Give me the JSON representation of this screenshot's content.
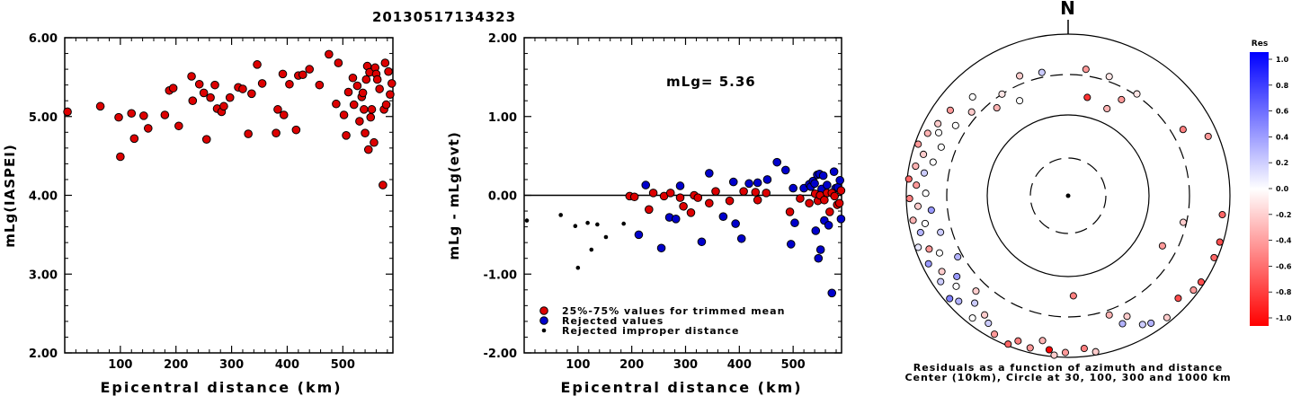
{
  "title": "20130517134323",
  "colors": {
    "accepted": "#dd0000",
    "rejected": "#0000cc",
    "improper": "#000000"
  },
  "chart_data": [
    {
      "type": "scatter",
      "xlabel": "Epicentral distance (km)",
      "ylabel": "mLg(IASPEI)",
      "xlim": [
        0,
        590
      ],
      "ylim": [
        2.0,
        6.0
      ],
      "xticks": [
        "100",
        "200",
        "300",
        "400",
        "500"
      ],
      "yticks": [
        "2.00",
        "3.00",
        "4.00",
        "5.00",
        "6.00"
      ],
      "points": [
        [
          5,
          5.06
        ],
        [
          64,
          5.13
        ],
        [
          97,
          4.99
        ],
        [
          100,
          4.49
        ],
        [
          120,
          5.04
        ],
        [
          125,
          4.72
        ],
        [
          142,
          5.01
        ],
        [
          150,
          4.85
        ],
        [
          180,
          5.02
        ],
        [
          188,
          5.33
        ],
        [
          195,
          5.36
        ],
        [
          205,
          4.88
        ],
        [
          228,
          5.51
        ],
        [
          230,
          5.2
        ],
        [
          242,
          5.41
        ],
        [
          250,
          5.3
        ],
        [
          255,
          4.71
        ],
        [
          262,
          5.24
        ],
        [
          270,
          5.4
        ],
        [
          274,
          5.1
        ],
        [
          282,
          5.06
        ],
        [
          286,
          5.13
        ],
        [
          297,
          5.24
        ],
        [
          312,
          5.37
        ],
        [
          320,
          5.35
        ],
        [
          330,
          4.78
        ],
        [
          336,
          5.29
        ],
        [
          346,
          5.66
        ],
        [
          355,
          5.42
        ],
        [
          380,
          4.79
        ],
        [
          383,
          5.09
        ],
        [
          392,
          5.54
        ],
        [
          394,
          5.02
        ],
        [
          404,
          5.41
        ],
        [
          416,
          4.83
        ],
        [
          420,
          5.52
        ],
        [
          428,
          5.53
        ],
        [
          440,
          5.6
        ],
        [
          458,
          5.4
        ],
        [
          475,
          5.79
        ],
        [
          488,
          5.16
        ],
        [
          492,
          5.68
        ],
        [
          502,
          5.02
        ],
        [
          506,
          4.76
        ],
        [
          510,
          5.31
        ],
        [
          518,
          5.49
        ],
        [
          520,
          5.15
        ],
        [
          526,
          5.39
        ],
        [
          530,
          4.94
        ],
        [
          534,
          5.25
        ],
        [
          536,
          5.3
        ],
        [
          538,
          5.09
        ],
        [
          540,
          4.79
        ],
        [
          542,
          5.47
        ],
        [
          544,
          5.64
        ],
        [
          546,
          4.58
        ],
        [
          548,
          5.56
        ],
        [
          550,
          4.99
        ],
        [
          552,
          5.09
        ],
        [
          556,
          4.67
        ],
        [
          558,
          5.62
        ],
        [
          560,
          5.54
        ],
        [
          562,
          5.47
        ],
        [
          566,
          5.35
        ],
        [
          572,
          4.13
        ],
        [
          574,
          5.09
        ],
        [
          576,
          5.68
        ],
        [
          578,
          5.15
        ],
        [
          582,
          5.57
        ],
        [
          585,
          5.28
        ],
        [
          588,
          5.42
        ]
      ]
    },
    {
      "type": "scatter",
      "xlabel": "Epicentral distance (km)",
      "ylabel": "mLg - mLg(evt)",
      "xlim": [
        0,
        590
      ],
      "ylim": [
        -2.0,
        2.0
      ],
      "xticks": [
        "100",
        "200",
        "300",
        "400",
        "500"
      ],
      "yticks": [
        "-2.00",
        "-1.00",
        "0.00",
        "1.00",
        "2.00"
      ],
      "annotation": "mLg= 5.36",
      "hline": 0.0,
      "legend": [
        {
          "label": "25%-75% values for trimmed mean",
          "kind": "accepted"
        },
        {
          "label": "Rejected values",
          "kind": "rejected"
        },
        {
          "label": "Rejected improper distance",
          "kind": "improper"
        }
      ],
      "accepted": [
        [
          196,
          -0.01
        ],
        [
          205,
          -0.02
        ],
        [
          232,
          -0.18
        ],
        [
          240,
          0.03
        ],
        [
          260,
          -0.01
        ],
        [
          272,
          0.03
        ],
        [
          290,
          -0.03
        ],
        [
          296,
          -0.14
        ],
        [
          310,
          -0.22
        ],
        [
          316,
          0.0
        ],
        [
          323,
          -0.03
        ],
        [
          344,
          -0.1
        ],
        [
          356,
          0.05
        ],
        [
          382,
          -0.07
        ],
        [
          408,
          0.05
        ],
        [
          430,
          0.04
        ],
        [
          434,
          -0.06
        ],
        [
          450,
          0.03
        ],
        [
          494,
          -0.21
        ],
        [
          513,
          -0.04
        ],
        [
          530,
          -0.1
        ],
        [
          541,
          0.02
        ],
        [
          546,
          -0.07
        ],
        [
          550,
          0.0
        ],
        [
          558,
          -0.06
        ],
        [
          563,
          0.03
        ],
        [
          568,
          -0.21
        ],
        [
          572,
          0.03
        ],
        [
          577,
          -0.01
        ],
        [
          582,
          -0.12
        ],
        [
          586,
          -0.1
        ],
        [
          589,
          0.06
        ]
      ],
      "rejected": [
        [
          213,
          -0.5
        ],
        [
          226,
          0.13
        ],
        [
          255,
          -0.67
        ],
        [
          270,
          -0.28
        ],
        [
          282,
          -0.3
        ],
        [
          290,
          0.12
        ],
        [
          330,
          -0.59
        ],
        [
          344,
          0.28
        ],
        [
          370,
          -0.27
        ],
        [
          389,
          0.17
        ],
        [
          393,
          -0.36
        ],
        [
          404,
          -0.55
        ],
        [
          418,
          0.15
        ],
        [
          434,
          0.16
        ],
        [
          452,
          0.2
        ],
        [
          470,
          0.42
        ],
        [
          486,
          0.32
        ],
        [
          496,
          -0.62
        ],
        [
          500,
          0.09
        ],
        [
          503,
          -0.35
        ],
        [
          520,
          0.09
        ],
        [
          530,
          0.14
        ],
        [
          533,
          0.11
        ],
        [
          537,
          0.18
        ],
        [
          540,
          0.15
        ],
        [
          542,
          -0.45
        ],
        [
          545,
          0.26
        ],
        [
          547,
          -0.8
        ],
        [
          549,
          0.27
        ],
        [
          551,
          -0.69
        ],
        [
          553,
          0.08
        ],
        [
          556,
          0.25
        ],
        [
          558,
          -0.32
        ],
        [
          563,
          0.13
        ],
        [
          566,
          -0.38
        ],
        [
          572,
          -1.24
        ],
        [
          576,
          0.3
        ],
        [
          579,
          0.09
        ],
        [
          583,
          0.1
        ],
        [
          587,
          0.19
        ],
        [
          589,
          -0.3
        ]
      ],
      "improper": [
        [
          5,
          -0.32
        ],
        [
          68,
          -0.25
        ],
        [
          95,
          -0.39
        ],
        [
          100,
          -0.92
        ],
        [
          118,
          -0.35
        ],
        [
          125,
          -0.69
        ],
        [
          136,
          -0.37
        ],
        [
          152,
          -0.53
        ],
        [
          185,
          -0.36
        ]
      ]
    },
    {
      "type": "polar-scatter",
      "north_label": "N",
      "caption_lines": [
        "Residuals as a function of azimuth and distance",
        "Center (10km), Circle at 30, 100, 300 and 1000 km"
      ],
      "rings_km": [
        30,
        100,
        300,
        1000
      ],
      "colorbar": {
        "title": "Res",
        "ticks": [
          "1.0",
          "0.8",
          "0.6",
          "0.4",
          "0.2",
          "0.0",
          "-0.2",
          "-0.4",
          "-0.6",
          "-0.8",
          "-1.0"
        ]
      },
      "points_az_r_res": [
        [
          348,
          0.78,
          0.2
        ],
        [
          8,
          0.79,
          -0.4
        ],
        [
          19,
          0.78,
          -0.1
        ],
        [
          11,
          0.62,
          -0.8
        ],
        [
          29,
          0.68,
          -0.4
        ],
        [
          24,
          0.59,
          -0.3
        ],
        [
          34,
          0.76,
          -0.1
        ],
        [
          60,
          0.82,
          -0.5
        ],
        [
          67,
          0.94,
          -0.4
        ],
        [
          97,
          0.96,
          -0.6
        ],
        [
          107,
          0.98,
          -0.7
        ],
        [
          103,
          0.73,
          -0.2
        ],
        [
          113,
          0.98,
          -0.6
        ],
        [
          118,
          0.66,
          -0.4
        ],
        [
          123,
          0.98,
          -0.7
        ],
        [
          127,
          0.97,
          -0.4
        ],
        [
          133,
          0.93,
          -0.7
        ],
        [
          141,
          0.97,
          -0.2
        ],
        [
          147,
          0.94,
          0.3
        ],
        [
          150,
          0.92,
          0.2
        ],
        [
          154,
          0.83,
          -0.2
        ],
        [
          157,
          0.86,
          0.3
        ],
        [
          161,
          0.78,
          -0.3
        ],
        [
          170,
          0.98,
          -0.2
        ],
        [
          174,
          0.95,
          -0.5
        ],
        [
          177,
          0.62,
          -0.5
        ],
        [
          181,
          0.97,
          -0.4
        ],
        [
          185,
          0.99,
          -0.2
        ],
        [
          187,
          0.96,
          -1.0
        ],
        [
          190,
          0.91,
          -0.3
        ],
        [
          194,
          0.97,
          -0.4
        ],
        [
          199,
          0.95,
          -0.5
        ],
        [
          202,
          0.99,
          -0.6
        ],
        [
          208,
          0.97,
          -0.4
        ],
        [
          212,
          0.93,
          0.2
        ],
        [
          215,
          0.9,
          -0.2
        ],
        [
          218,
          0.96,
          0.0
        ],
        [
          221,
          0.88,
          0.2
        ],
        [
          224,
          0.82,
          -0.2
        ],
        [
          226,
          0.94,
          0.3
        ],
        [
          229,
          0.97,
          0.5
        ],
        [
          231,
          0.89,
          0.0
        ],
        [
          234,
          0.85,
          0.4
        ],
        [
          236,
          0.95,
          0.2
        ],
        [
          239,
          0.91,
          -0.2
        ],
        [
          241,
          0.78,
          0.3
        ],
        [
          244,
          0.96,
          0.4
        ],
        [
          246,
          0.87,
          0.0
        ],
        [
          249,
          0.92,
          -0.4
        ],
        [
          251,
          0.98,
          0.1
        ],
        [
          254,
          0.82,
          0.2
        ],
        [
          256,
          0.94,
          0.3
        ],
        [
          259,
          0.9,
          0.0
        ],
        [
          261,
          0.97,
          -0.3
        ],
        [
          264,
          0.85,
          0.4
        ],
        [
          266,
          0.93,
          -0.2
        ],
        [
          269,
          0.98,
          -0.5
        ],
        [
          271,
          0.88,
          0.0
        ],
        [
          274,
          0.94,
          -0.4
        ],
        [
          276,
          0.99,
          -0.6
        ],
        [
          279,
          0.9,
          0.2
        ],
        [
          281,
          0.96,
          -0.3
        ],
        [
          284,
          0.86,
          0.0
        ],
        [
          286,
          0.93,
          -0.2
        ],
        [
          289,
          0.98,
          -0.4
        ],
        [
          291,
          0.84,
          0.0
        ],
        [
          294,
          0.95,
          -0.3
        ],
        [
          296,
          0.89,
          0.0
        ],
        [
          299,
          0.92,
          -0.2
        ],
        [
          302,
          0.82,
          0.0
        ],
        [
          306,
          0.9,
          -0.4
        ],
        [
          311,
          0.79,
          -0.2
        ],
        [
          316,
          0.85,
          0.0
        ],
        [
          321,
          0.7,
          -0.3
        ],
        [
          327,
          0.75,
          -0.1
        ],
        [
          333,
          0.66,
          0.0
        ],
        [
          338,
          0.8,
          -0.2
        ]
      ]
    }
  ]
}
